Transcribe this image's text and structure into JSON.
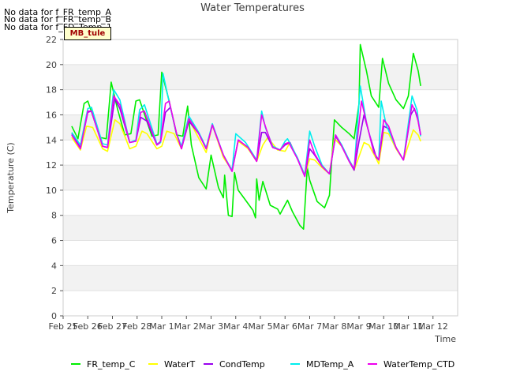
{
  "no_data_notes": [
    "No data for f_FR_temp_A",
    "No data for f_FR_temp_B",
    "No data for f_FD_Temp_1"
  ],
  "badge_label": "MB_tule",
  "chart_data": {
    "type": "line",
    "title": "Water Temperatures",
    "xlabel": "Time",
    "ylabel": "Temperature (C)",
    "ylim": [
      0,
      22
    ],
    "yticks": [
      0,
      2,
      4,
      6,
      8,
      10,
      12,
      14,
      16,
      18,
      20,
      22
    ],
    "xlim": [
      0,
      16
    ],
    "xtick_labels": [
      "Feb 25",
      "Feb 26",
      "Feb 27",
      "Feb 28",
      "Mar 1",
      "Mar 2",
      "Mar 3",
      "Mar 4",
      "Mar 5",
      "Mar 6",
      "Mar 7",
      "Mar 8",
      "Mar 9",
      "Mar 10",
      "Mar 11",
      "Mar 12"
    ],
    "grid": "horizontal bands",
    "legend_position": "bottom",
    "series": [
      {
        "name": "FR_temp_C",
        "color": "#00ee00",
        "points": [
          [
            0.35,
            15.1
          ],
          [
            0.6,
            14.1
          ],
          [
            0.85,
            16.9
          ],
          [
            1.0,
            17.1
          ],
          [
            1.5,
            14.2
          ],
          [
            1.75,
            14.1
          ],
          [
            1.95,
            18.6
          ],
          [
            2.2,
            16.5
          ],
          [
            2.5,
            14.4
          ],
          [
            2.75,
            14.5
          ],
          [
            2.95,
            17.1
          ],
          [
            3.1,
            17.2
          ],
          [
            3.6,
            14.3
          ],
          [
            3.85,
            14.4
          ],
          [
            4.0,
            19.4
          ],
          [
            4.3,
            17.1
          ],
          [
            4.6,
            14.4
          ],
          [
            4.85,
            14.3
          ],
          [
            5.05,
            16.7
          ],
          [
            5.2,
            13.6
          ],
          [
            5.5,
            11.0
          ],
          [
            5.8,
            10.1
          ],
          [
            6.0,
            12.8
          ],
          [
            6.3,
            10.2
          ],
          [
            6.5,
            9.4
          ],
          [
            6.55,
            11.2
          ],
          [
            6.7,
            8.0
          ],
          [
            6.85,
            7.9
          ],
          [
            6.95,
            11.4
          ],
          [
            7.1,
            10.0
          ],
          [
            7.4,
            9.2
          ],
          [
            7.7,
            8.4
          ],
          [
            7.8,
            7.8
          ],
          [
            7.85,
            10.9
          ],
          [
            7.95,
            9.2
          ],
          [
            8.1,
            10.7
          ],
          [
            8.4,
            8.8
          ],
          [
            8.7,
            8.5
          ],
          [
            8.8,
            8.1
          ],
          [
            9.1,
            9.2
          ],
          [
            9.3,
            8.3
          ],
          [
            9.6,
            7.2
          ],
          [
            9.75,
            6.9
          ],
          [
            9.9,
            11.8
          ],
          [
            10.0,
            10.8
          ],
          [
            10.3,
            9.1
          ],
          [
            10.6,
            8.6
          ],
          [
            10.8,
            9.6
          ],
          [
            11.0,
            15.6
          ],
          [
            11.3,
            15.0
          ],
          [
            11.6,
            14.5
          ],
          [
            11.8,
            14.1
          ],
          [
            12.0,
            16.9
          ],
          [
            12.05,
            21.6
          ],
          [
            12.3,
            19.5
          ],
          [
            12.5,
            17.5
          ],
          [
            12.8,
            16.6
          ],
          [
            12.95,
            20.5
          ],
          [
            13.2,
            18.5
          ],
          [
            13.5,
            17.2
          ],
          [
            13.8,
            16.5
          ],
          [
            14.0,
            17.5
          ],
          [
            14.2,
            20.9
          ],
          [
            14.4,
            19.5
          ],
          [
            14.5,
            18.3
          ]
        ]
      },
      {
        "name": "WaterT",
        "color": "#ffff00",
        "points": [
          [
            0.35,
            14.2
          ],
          [
            0.7,
            13.2
          ],
          [
            0.95,
            15.1
          ],
          [
            1.2,
            15.0
          ],
          [
            1.6,
            13.3
          ],
          [
            1.8,
            13.1
          ],
          [
            2.1,
            15.6
          ],
          [
            2.3,
            15.3
          ],
          [
            2.7,
            13.3
          ],
          [
            2.95,
            13.5
          ],
          [
            3.2,
            14.7
          ],
          [
            3.4,
            14.5
          ],
          [
            3.8,
            13.3
          ],
          [
            4.0,
            13.5
          ],
          [
            4.2,
            14.7
          ],
          [
            4.5,
            14.5
          ],
          [
            4.8,
            13.3
          ],
          [
            5.1,
            15.6
          ],
          [
            5.4,
            14.5
          ],
          [
            5.8,
            13.0
          ],
          [
            6.05,
            15.2
          ],
          [
            6.5,
            12.6
          ],
          [
            6.85,
            11.6
          ],
          [
            7.1,
            13.9
          ],
          [
            7.5,
            13.3
          ],
          [
            7.85,
            12.3
          ],
          [
            8.1,
            13.6
          ],
          [
            8.3,
            14.2
          ],
          [
            8.7,
            13.2
          ],
          [
            9.0,
            13.1
          ],
          [
            9.2,
            13.8
          ],
          [
            9.5,
            12.5
          ],
          [
            9.8,
            11.2
          ],
          [
            10.0,
            12.5
          ],
          [
            10.2,
            12.4
          ],
          [
            10.5,
            11.8
          ],
          [
            10.8,
            11.3
          ],
          [
            11.0,
            14.1
          ],
          [
            11.3,
            13.5
          ],
          [
            11.6,
            12.3
          ],
          [
            11.8,
            11.6
          ],
          [
            12.2,
            13.8
          ],
          [
            12.4,
            13.6
          ],
          [
            12.7,
            12.5
          ],
          [
            12.8,
            12.1
          ],
          [
            13.0,
            14.6
          ],
          [
            13.2,
            14.5
          ],
          [
            13.5,
            13.3
          ],
          [
            13.8,
            12.4
          ],
          [
            14.2,
            14.8
          ],
          [
            14.4,
            14.4
          ],
          [
            14.5,
            13.9
          ]
        ]
      },
      {
        "name": "CondTemp",
        "color": "#9900ee",
        "points": [
          [
            0.35,
            14.5
          ],
          [
            0.7,
            13.4
          ],
          [
            1.0,
            16.2
          ],
          [
            1.15,
            16.3
          ],
          [
            1.6,
            13.5
          ],
          [
            1.8,
            13.4
          ],
          [
            2.1,
            17.3
          ],
          [
            2.3,
            16.5
          ],
          [
            2.7,
            13.8
          ],
          [
            2.95,
            13.9
          ],
          [
            3.15,
            15.8
          ],
          [
            3.4,
            15.5
          ],
          [
            3.8,
            13.6
          ],
          [
            3.95,
            13.8
          ],
          [
            4.15,
            16.2
          ],
          [
            4.35,
            16.6
          ],
          [
            4.6,
            14.5
          ],
          [
            4.8,
            13.3
          ],
          [
            5.1,
            15.5
          ],
          [
            5.5,
            14.5
          ],
          [
            5.8,
            13.3
          ],
          [
            6.05,
            15.2
          ],
          [
            6.5,
            12.8
          ],
          [
            6.85,
            11.5
          ],
          [
            7.1,
            14.0
          ],
          [
            7.5,
            13.4
          ],
          [
            7.85,
            12.3
          ],
          [
            8.05,
            14.6
          ],
          [
            8.2,
            14.6
          ],
          [
            8.5,
            13.4
          ],
          [
            8.8,
            13.2
          ],
          [
            9.0,
            13.6
          ],
          [
            9.2,
            13.8
          ],
          [
            9.5,
            12.5
          ],
          [
            9.8,
            11.1
          ],
          [
            10.0,
            13.3
          ],
          [
            10.2,
            12.8
          ],
          [
            10.5,
            11.9
          ],
          [
            10.8,
            11.3
          ],
          [
            11.05,
            14.3
          ],
          [
            11.3,
            13.5
          ],
          [
            11.6,
            12.3
          ],
          [
            11.8,
            11.6
          ],
          [
            12.0,
            13.9
          ],
          [
            12.2,
            16.0
          ],
          [
            12.4,
            14.6
          ],
          [
            12.7,
            12.6
          ],
          [
            12.8,
            12.4
          ],
          [
            13.0,
            15.1
          ],
          [
            13.2,
            14.9
          ],
          [
            13.5,
            13.4
          ],
          [
            13.8,
            12.4
          ],
          [
            14.1,
            16.0
          ],
          [
            14.25,
            16.5
          ],
          [
            14.4,
            15.5
          ],
          [
            14.5,
            14.4
          ]
        ]
      },
      {
        "name": "MDTemp_A",
        "color": "#00eeee",
        "points": [
          [
            0.35,
            14.6
          ],
          [
            0.7,
            13.6
          ],
          [
            1.0,
            16.5
          ],
          [
            1.15,
            16.6
          ],
          [
            1.6,
            13.7
          ],
          [
            1.8,
            13.6
          ],
          [
            2.05,
            18.0
          ],
          [
            2.3,
            17.2
          ],
          [
            2.7,
            13.8
          ],
          [
            2.95,
            14.0
          ],
          [
            3.1,
            16.4
          ],
          [
            3.3,
            16.8
          ],
          [
            3.8,
            13.7
          ],
          [
            3.95,
            13.8
          ],
          [
            4.05,
            19.3
          ],
          [
            4.3,
            17.0
          ],
          [
            4.6,
            14.5
          ],
          [
            4.8,
            13.5
          ],
          [
            5.1,
            15.9
          ],
          [
            5.5,
            14.6
          ],
          [
            5.8,
            13.4
          ],
          [
            6.05,
            15.3
          ],
          [
            6.5,
            12.8
          ],
          [
            6.85,
            11.6
          ],
          [
            7.0,
            14.5
          ],
          [
            7.4,
            13.8
          ],
          [
            7.85,
            12.4
          ],
          [
            8.05,
            16.3
          ],
          [
            8.2,
            15.0
          ],
          [
            8.5,
            13.5
          ],
          [
            8.8,
            13.2
          ],
          [
            9.0,
            13.9
          ],
          [
            9.1,
            14.1
          ],
          [
            9.5,
            12.6
          ],
          [
            9.8,
            11.2
          ],
          [
            10.0,
            14.7
          ],
          [
            10.2,
            13.5
          ],
          [
            10.5,
            12.0
          ],
          [
            10.8,
            11.3
          ],
          [
            11.05,
            14.4
          ],
          [
            11.3,
            13.6
          ],
          [
            11.6,
            12.4
          ],
          [
            11.8,
            11.7
          ],
          [
            12.05,
            18.3
          ],
          [
            12.3,
            15.4
          ],
          [
            12.6,
            13.0
          ],
          [
            12.8,
            12.4
          ],
          [
            12.9,
            17.1
          ],
          [
            13.1,
            15.2
          ],
          [
            13.5,
            13.4
          ],
          [
            13.8,
            12.4
          ],
          [
            14.15,
            17.5
          ],
          [
            14.35,
            16.4
          ],
          [
            14.5,
            14.3
          ]
        ]
      },
      {
        "name": "WaterTemp_CTD",
        "color": "#ee00ee",
        "points": [
          [
            0.35,
            14.4
          ],
          [
            0.7,
            13.3
          ],
          [
            1.0,
            16.3
          ],
          [
            1.15,
            16.3
          ],
          [
            1.6,
            13.5
          ],
          [
            1.8,
            13.4
          ],
          [
            2.05,
            17.5
          ],
          [
            2.3,
            16.8
          ],
          [
            2.7,
            13.8
          ],
          [
            2.95,
            13.9
          ],
          [
            3.15,
            16.2
          ],
          [
            3.3,
            16.3
          ],
          [
            3.8,
            13.6
          ],
          [
            3.95,
            13.9
          ],
          [
            4.15,
            16.9
          ],
          [
            4.3,
            17.1
          ],
          [
            4.6,
            14.5
          ],
          [
            4.8,
            13.3
          ],
          [
            5.1,
            15.7
          ],
          [
            5.5,
            14.5
          ],
          [
            5.8,
            13.3
          ],
          [
            6.05,
            15.2
          ],
          [
            6.5,
            12.8
          ],
          [
            6.85,
            11.5
          ],
          [
            7.1,
            14.0
          ],
          [
            7.5,
            13.4
          ],
          [
            7.85,
            12.3
          ],
          [
            8.05,
            16.0
          ],
          [
            8.25,
            14.8
          ],
          [
            8.5,
            13.4
          ],
          [
            8.8,
            13.2
          ],
          [
            9.0,
            13.7
          ],
          [
            9.15,
            13.8
          ],
          [
            9.5,
            12.5
          ],
          [
            9.8,
            11.1
          ],
          [
            10.0,
            14.0
          ],
          [
            10.2,
            12.9
          ],
          [
            10.5,
            11.9
          ],
          [
            10.8,
            11.3
          ],
          [
            11.05,
            14.4
          ],
          [
            11.3,
            13.5
          ],
          [
            11.6,
            12.3
          ],
          [
            11.8,
            11.7
          ],
          [
            12.1,
            17.1
          ],
          [
            12.35,
            15.0
          ],
          [
            12.6,
            13.0
          ],
          [
            12.8,
            12.4
          ],
          [
            13.0,
            15.6
          ],
          [
            13.2,
            15.1
          ],
          [
            13.5,
            13.4
          ],
          [
            13.8,
            12.4
          ],
          [
            14.15,
            16.8
          ],
          [
            14.35,
            16.0
          ],
          [
            14.5,
            14.4
          ]
        ]
      }
    ]
  }
}
